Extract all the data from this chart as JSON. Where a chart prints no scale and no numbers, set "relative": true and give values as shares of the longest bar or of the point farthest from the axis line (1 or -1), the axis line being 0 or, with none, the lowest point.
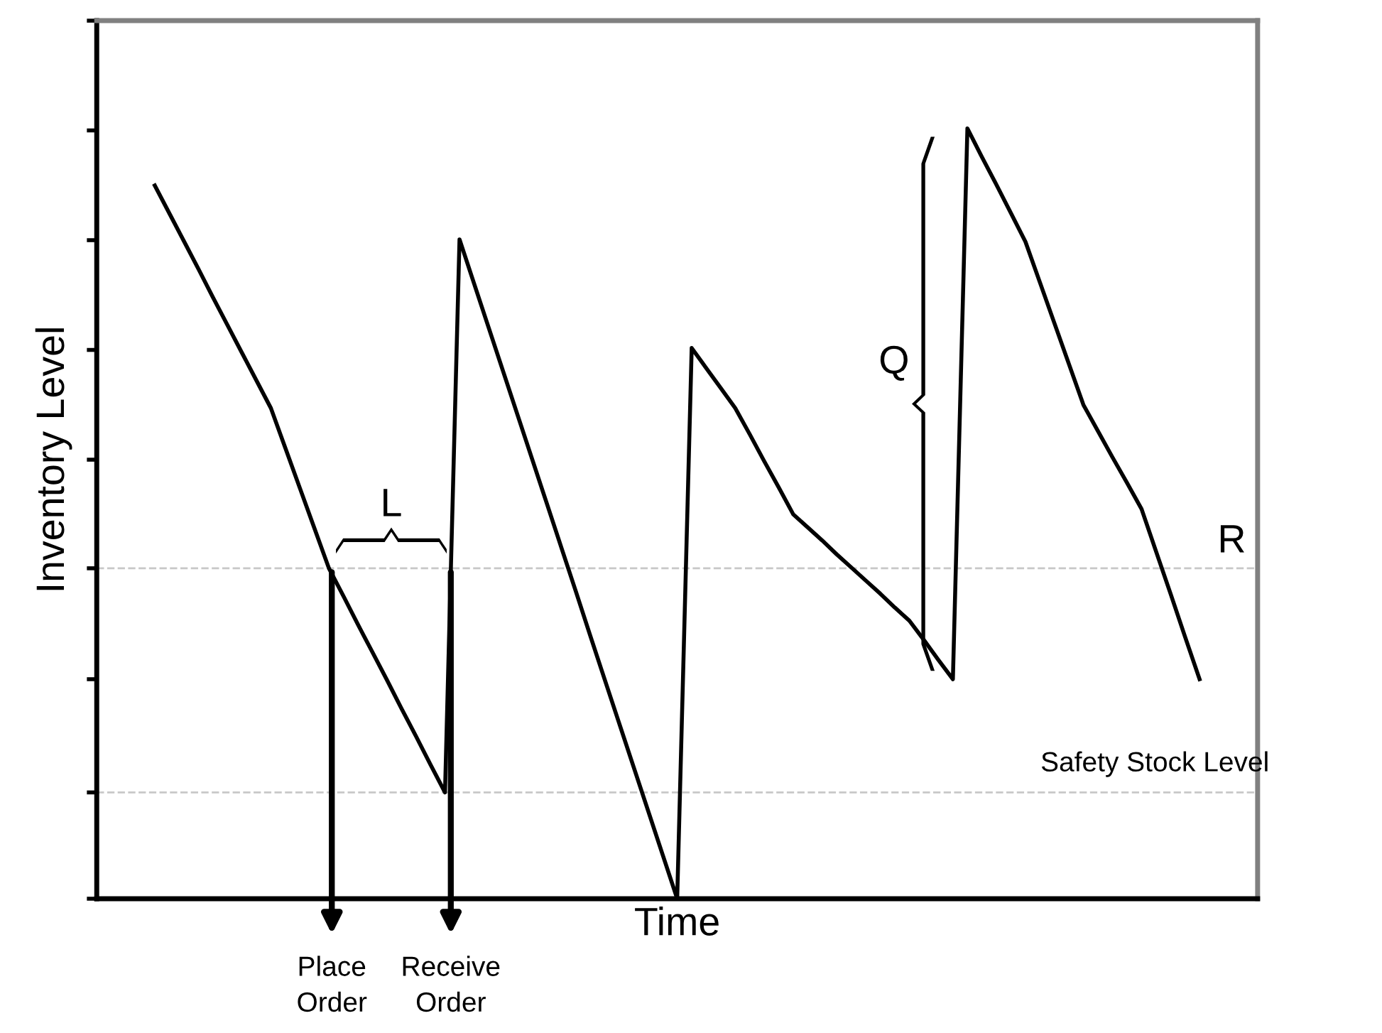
{
  "chart_data": {
    "type": "line",
    "relative": true,
    "xlabel": "Time",
    "ylabel": "Inventory Level",
    "categories": [
      null,
      null,
      null,
      null,
      null,
      null,
      null,
      null,
      null,
      null,
      null,
      null,
      null,
      null,
      null,
      null,
      null,
      null,
      null,
      null,
      null,
      null,
      null,
      null,
      null,
      null,
      null,
      null,
      null,
      null,
      null,
      null,
      null,
      null,
      null,
      null,
      null,
      null,
      null,
      null,
      null,
      null,
      null,
      null,
      null,
      null,
      null,
      null,
      null,
      null,
      null,
      null,
      null,
      null,
      null,
      null,
      null,
      null,
      null,
      null,
      null,
      null,
      null,
      null,
      null,
      null,
      null,
      null,
      null,
      null,
      null,
      null,
      null,
      null,
      null,
      null,
      null,
      null,
      null,
      null,
      null
    ],
    "series": [
      {
        "color": "#000000",
        "values": [
          null,
          null,
          null,
          null,
          0.926,
          0.89,
          0.854,
          0.818,
          0.781,
          0.745,
          0.709,
          0.673,
          0.637,
          0.585,
          0.533,
          0.481,
          0.429,
          0.393,
          0.356,
          0.32,
          0.284,
          0.247,
          0.211,
          0.174,
          0.138,
          0.856,
          0.799,
          0.742,
          0.685,
          0.628,
          0.571,
          0.514,
          0.457,
          0.4,
          0.342,
          0.285,
          0.228,
          0.171,
          0.114,
          0.057,
          0.0,
          0.715,
          0.689,
          0.663,
          0.637,
          0.603,
          0.568,
          0.534,
          0.499,
          0.482,
          0.465,
          0.447,
          0.43,
          0.413,
          0.396,
          0.378,
          0.361,
          0.336,
          0.31,
          0.285,
          1.0,
          0.963,
          0.927,
          0.89,
          0.853,
          0.8,
          0.747,
          0.694,
          0.641,
          0.607,
          0.573,
          0.54,
          0.506,
          0.451,
          0.396,
          0.34,
          0.285,
          null,
          null,
          null,
          null
        ]
      }
    ],
    "ref_lines": [
      {
        "axis": "y",
        "value": 0.429,
        "label": "R",
        "color": "#c8c8c8",
        "line_style": "dashed"
      },
      {
        "axis": "y",
        "value": 0.138,
        "label": "Safety Stock Level",
        "color": "#c8c8c8",
        "line_style": "dashed"
      }
    ],
    "annotations": [
      "Place Order",
      "Receive Order",
      "L",
      "Q"
    ],
    "legend": false,
    "grid": false,
    "marker": "none",
    "line_style": "solid"
  }
}
